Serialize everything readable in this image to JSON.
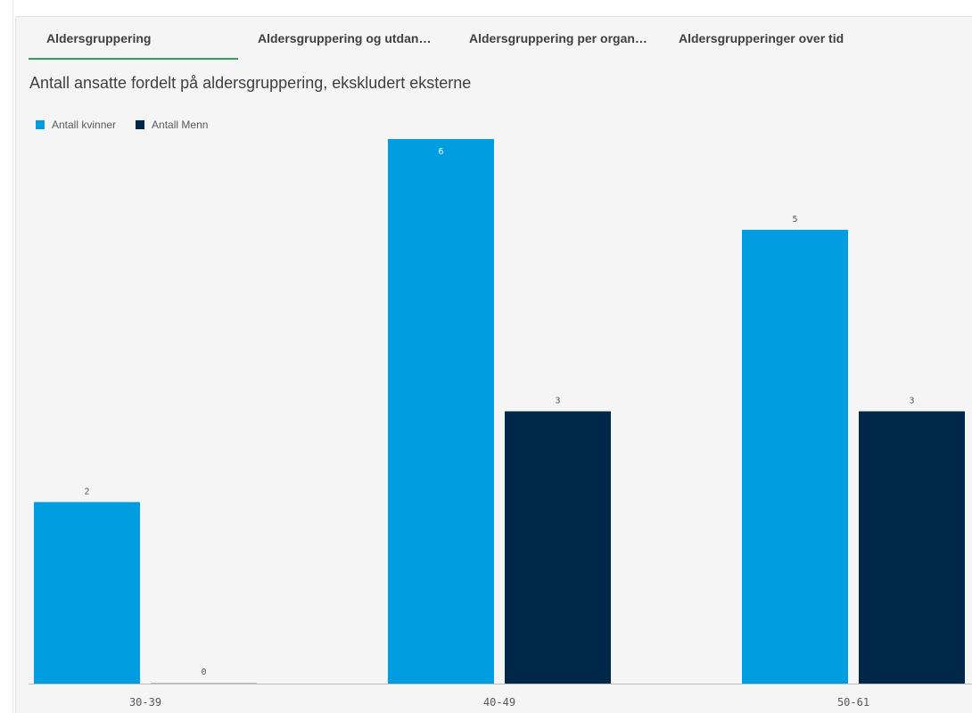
{
  "tabs": [
    {
      "label": "Aldersgruppering",
      "active": true
    },
    {
      "label": "Aldersgruppering og utdan…",
      "active": false
    },
    {
      "label": "Aldersgruppering per organ…",
      "active": false
    },
    {
      "label": "Aldersgrupperinger over tid",
      "active": false
    }
  ],
  "colors": {
    "accent_tab": "#2fa55b",
    "kvinner": "#009ee0",
    "menn": "#002748",
    "panel_bg": "#f5f5f5"
  },
  "chart_data": {
    "type": "bar",
    "title": "Antall ansatte fordelt på aldersgruppering, ekskludert eksterne",
    "categories": [
      "30-39",
      "40-49",
      "50-61"
    ],
    "series": [
      {
        "name": "Antall kvinner",
        "values": [
          2,
          6,
          5
        ],
        "color": "#009ee0"
      },
      {
        "name": "Antall Menn",
        "values": [
          0,
          3,
          3
        ],
        "color": "#002748"
      }
    ],
    "ylim": [
      0,
      6
    ],
    "grid": false,
    "legend": "top-left"
  }
}
